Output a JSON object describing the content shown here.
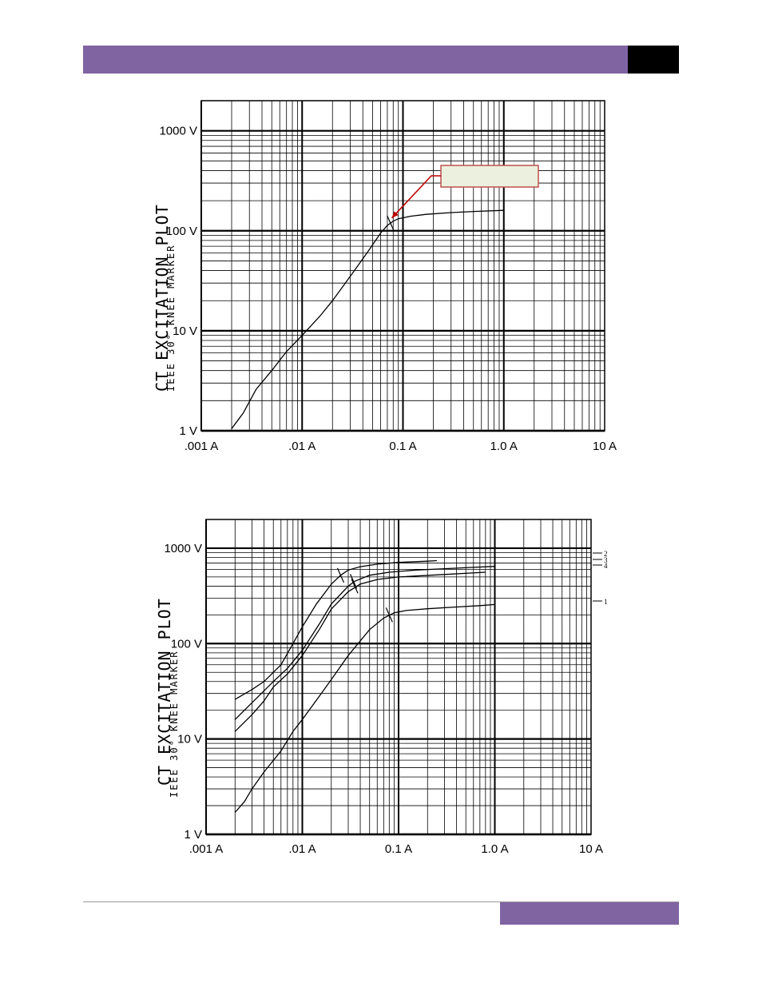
{
  "header": {
    "accent": "#8064a2",
    "box_color": "#000000"
  },
  "footer": {
    "accent": "#8064a2"
  },
  "chart_data": [
    {
      "type": "line",
      "title": "CT EXCITATION PLOT",
      "subtitle": "IEEE 30° KNEE MARKER",
      "x_scale": "log",
      "y_scale": "log",
      "xlim": [
        0.001,
        10
      ],
      "ylim": [
        1,
        2000
      ],
      "x_ticks": [
        {
          "value": 0.001,
          "label": ".001 A"
        },
        {
          "value": 0.01,
          "label": ".01 A"
        },
        {
          "value": 0.1,
          "label": "0.1 A"
        },
        {
          "value": 1,
          "label": "1.0 A"
        },
        {
          "value": 10,
          "label": "10 A"
        }
      ],
      "y_ticks": [
        {
          "value": 1,
          "label": "1 V"
        },
        {
          "value": 10,
          "label": "10 V"
        },
        {
          "value": 100,
          "label": "100 V"
        },
        {
          "value": 1000,
          "label": "1000 V"
        }
      ],
      "grid": true,
      "annotation": {
        "type": "callout-box",
        "fill": "#ebf1de",
        "border": "#c0504d",
        "arrow_color": "#c00000",
        "text": "",
        "points_to": {
          "x": 0.072,
          "y": 118
        }
      },
      "series": [
        {
          "x": [
            0.002,
            0.0026,
            0.0035,
            0.005,
            0.007,
            0.01,
            0.015,
            0.02,
            0.03,
            0.045,
            0.06,
            0.07,
            0.08,
            0.09,
            0.12,
            0.17,
            0.3,
            0.5,
            1.0
          ],
          "y": [
            1.05,
            1.5,
            2.6,
            4.0,
            6.2,
            9.0,
            14,
            20,
            35,
            62,
            95,
            113,
            125,
            132,
            140,
            146,
            152,
            156,
            160
          ],
          "knee": {
            "x": 0.075,
            "y": 120
          }
        }
      ]
    },
    {
      "type": "line",
      "title": "CT EXCITATION PLOT",
      "subtitle": "IEEE 30° KNEE MARKER",
      "x_scale": "log",
      "y_scale": "log",
      "xlim": [
        0.001,
        10
      ],
      "ylim": [
        1,
        2000
      ],
      "x_ticks": [
        {
          "value": 0.001,
          "label": ".001 A"
        },
        {
          "value": 0.01,
          "label": ".01 A"
        },
        {
          "value": 0.1,
          "label": "0.1 A"
        },
        {
          "value": 1,
          "label": "1.0 A"
        },
        {
          "value": 10,
          "label": "10 A"
        }
      ],
      "y_ticks": [
        {
          "value": 1,
          "label": "1 V"
        },
        {
          "value": 10,
          "label": "10 V"
        },
        {
          "value": 100,
          "label": "100 V"
        },
        {
          "value": 1000,
          "label": "1000 V"
        }
      ],
      "grid": true,
      "series": [
        {
          "x": [
            0.002,
            0.003,
            0.004,
            0.006,
            0.008,
            0.01,
            0.014,
            0.02,
            0.025,
            0.03,
            0.04,
            0.06,
            0.1,
            0.2,
            0.25
          ],
          "y": [
            26,
            33,
            40,
            60,
            100,
            150,
            260,
            420,
            520,
            590,
            640,
            680,
            710,
            730,
            740
          ],
          "knee": {
            "x": 0.025,
            "y": 520
          }
        },
        {
          "x": [
            0.002,
            0.003,
            0.004,
            0.005,
            0.007,
            0.01,
            0.015,
            0.02,
            0.03,
            0.035,
            0.05,
            0.08,
            0.15,
            0.3,
            0.6,
            1.0
          ],
          "y": [
            16,
            24,
            32,
            40,
            55,
            85,
            160,
            260,
            400,
            450,
            520,
            560,
            590,
            610,
            630,
            645
          ],
          "knee": {
            "x": 0.034,
            "y": 450
          }
        },
        {
          "x": [
            0.002,
            0.003,
            0.004,
            0.005,
            0.007,
            0.01,
            0.015,
            0.02,
            0.03,
            0.04,
            0.06,
            0.1,
            0.3,
            0.8
          ],
          "y": [
            12,
            18,
            25,
            35,
            48,
            75,
            140,
            230,
            350,
            420,
            470,
            500,
            530,
            560
          ],
          "knee": {
            "x": 0.035,
            "y": 400
          }
        },
        {
          "x": [
            0.002,
            0.0025,
            0.003,
            0.004,
            0.006,
            0.008,
            0.01,
            0.015,
            0.02,
            0.03,
            0.05,
            0.07,
            0.09,
            0.12,
            0.2,
            0.4,
            0.7,
            1.0
          ],
          "y": [
            1.7,
            2.2,
            3.0,
            4.5,
            7.5,
            12,
            16,
            28,
            42,
            75,
            140,
            185,
            210,
            222,
            232,
            242,
            250,
            257
          ],
          "knee": {
            "x": 0.08,
            "y": 200
          }
        }
      ],
      "right_markers": [
        "2",
        "3",
        "4",
        "1"
      ]
    }
  ]
}
